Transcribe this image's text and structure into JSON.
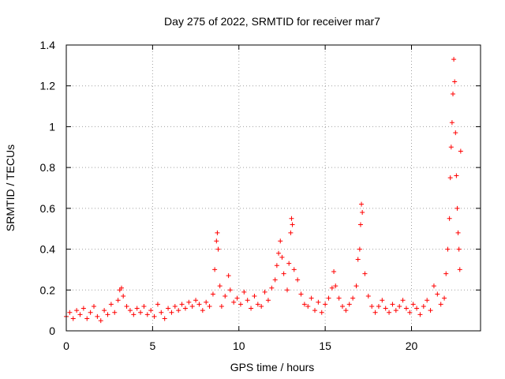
{
  "chart_data": {
    "type": "scatter",
    "title": "Day 275 of 2022, SRMTID for receiver mar7",
    "xlabel": "GPS time / hours",
    "ylabel": "SRMTID / TECUs",
    "xlim": [
      0,
      24
    ],
    "ylim": [
      0,
      1.4
    ],
    "x_ticks": [
      0,
      5,
      10,
      15,
      20
    ],
    "x_tick_labels": [
      "0",
      "5",
      "10",
      "15",
      "20"
    ],
    "y_ticks": [
      0,
      0.2,
      0.4,
      0.6,
      0.8,
      1.0,
      1.2,
      1.4
    ],
    "y_tick_labels": [
      "0",
      "0.2",
      "0.4",
      "0.6",
      "0.8",
      "1",
      "1.2",
      "1.4"
    ],
    "grid": true,
    "marker": "+",
    "color": "#ff0000",
    "series": [
      {
        "name": "SRMTID",
        "points": [
          [
            0.0,
            0.07
          ],
          [
            0.2,
            0.09
          ],
          [
            0.4,
            0.06
          ],
          [
            0.6,
            0.1
          ],
          [
            0.8,
            0.08
          ],
          [
            1.0,
            0.11
          ],
          [
            1.2,
            0.06
          ],
          [
            1.4,
            0.09
          ],
          [
            1.6,
            0.12
          ],
          [
            1.8,
            0.07
          ],
          [
            2.0,
            0.05
          ],
          [
            2.2,
            0.1
          ],
          [
            2.4,
            0.08
          ],
          [
            2.6,
            0.13
          ],
          [
            2.8,
            0.09
          ],
          [
            3.0,
            0.15
          ],
          [
            3.1,
            0.2
          ],
          [
            3.2,
            0.21
          ],
          [
            3.3,
            0.17
          ],
          [
            3.5,
            0.12
          ],
          [
            3.7,
            0.1
          ],
          [
            3.9,
            0.08
          ],
          [
            4.1,
            0.11
          ],
          [
            4.3,
            0.09
          ],
          [
            4.5,
            0.12
          ],
          [
            4.7,
            0.08
          ],
          [
            4.9,
            0.1
          ],
          [
            5.1,
            0.07
          ],
          [
            5.3,
            0.13
          ],
          [
            5.5,
            0.09
          ],
          [
            5.7,
            0.06
          ],
          [
            5.9,
            0.11
          ],
          [
            6.1,
            0.09
          ],
          [
            6.3,
            0.12
          ],
          [
            6.5,
            0.1
          ],
          [
            6.7,
            0.13
          ],
          [
            6.9,
            0.11
          ],
          [
            7.1,
            0.14
          ],
          [
            7.3,
            0.12
          ],
          [
            7.5,
            0.15
          ],
          [
            7.7,
            0.13
          ],
          [
            7.9,
            0.1
          ],
          [
            8.1,
            0.14
          ],
          [
            8.3,
            0.12
          ],
          [
            8.5,
            0.18
          ],
          [
            8.6,
            0.3
          ],
          [
            8.7,
            0.44
          ],
          [
            8.75,
            0.48
          ],
          [
            8.8,
            0.4
          ],
          [
            8.9,
            0.22
          ],
          [
            9.0,
            0.12
          ],
          [
            9.2,
            0.17
          ],
          [
            9.4,
            0.27
          ],
          [
            9.5,
            0.2
          ],
          [
            9.7,
            0.14
          ],
          [
            9.9,
            0.16
          ],
          [
            10.1,
            0.13
          ],
          [
            10.3,
            0.19
          ],
          [
            10.5,
            0.15
          ],
          [
            10.7,
            0.11
          ],
          [
            10.9,
            0.17
          ],
          [
            11.1,
            0.13
          ],
          [
            11.3,
            0.12
          ],
          [
            11.5,
            0.19
          ],
          [
            11.7,
            0.15
          ],
          [
            11.9,
            0.21
          ],
          [
            12.1,
            0.25
          ],
          [
            12.2,
            0.32
          ],
          [
            12.3,
            0.38
          ],
          [
            12.4,
            0.44
          ],
          [
            12.5,
            0.36
          ],
          [
            12.6,
            0.28
          ],
          [
            12.8,
            0.2
          ],
          [
            12.9,
            0.33
          ],
          [
            13.0,
            0.48
          ],
          [
            13.05,
            0.55
          ],
          [
            13.1,
            0.52
          ],
          [
            13.2,
            0.3
          ],
          [
            13.4,
            0.25
          ],
          [
            13.6,
            0.18
          ],
          [
            13.8,
            0.13
          ],
          [
            14.0,
            0.12
          ],
          [
            14.2,
            0.16
          ],
          [
            14.4,
            0.1
          ],
          [
            14.6,
            0.14
          ],
          [
            14.8,
            0.09
          ],
          [
            15.0,
            0.13
          ],
          [
            15.2,
            0.16
          ],
          [
            15.4,
            0.21
          ],
          [
            15.5,
            0.29
          ],
          [
            15.6,
            0.22
          ],
          [
            15.8,
            0.16
          ],
          [
            16.0,
            0.12
          ],
          [
            16.2,
            0.1
          ],
          [
            16.4,
            0.13
          ],
          [
            16.6,
            0.16
          ],
          [
            16.8,
            0.22
          ],
          [
            16.9,
            0.35
          ],
          [
            17.0,
            0.4
          ],
          [
            17.05,
            0.52
          ],
          [
            17.1,
            0.62
          ],
          [
            17.15,
            0.58
          ],
          [
            17.3,
            0.28
          ],
          [
            17.5,
            0.17
          ],
          [
            17.7,
            0.12
          ],
          [
            17.9,
            0.09
          ],
          [
            18.1,
            0.12
          ],
          [
            18.3,
            0.15
          ],
          [
            18.5,
            0.11
          ],
          [
            18.7,
            0.09
          ],
          [
            18.9,
            0.13
          ],
          [
            19.1,
            0.1
          ],
          [
            19.3,
            0.12
          ],
          [
            19.5,
            0.15
          ],
          [
            19.7,
            0.11
          ],
          [
            19.9,
            0.09
          ],
          [
            20.1,
            0.13
          ],
          [
            20.3,
            0.11
          ],
          [
            20.5,
            0.08
          ],
          [
            20.7,
            0.12
          ],
          [
            20.9,
            0.15
          ],
          [
            21.1,
            0.1
          ],
          [
            21.3,
            0.22
          ],
          [
            21.5,
            0.18
          ],
          [
            21.7,
            0.13
          ],
          [
            21.9,
            0.16
          ],
          [
            22.0,
            0.28
          ],
          [
            22.1,
            0.4
          ],
          [
            22.2,
            0.55
          ],
          [
            22.25,
            0.75
          ],
          [
            22.3,
            0.9
          ],
          [
            22.35,
            1.02
          ],
          [
            22.4,
            1.16
          ],
          [
            22.45,
            1.33
          ],
          [
            22.5,
            1.22
          ],
          [
            22.55,
            0.97
          ],
          [
            22.6,
            0.76
          ],
          [
            22.65,
            0.6
          ],
          [
            22.7,
            0.48
          ],
          [
            22.75,
            0.4
          ],
          [
            22.8,
            0.3
          ],
          [
            22.85,
            0.88
          ]
        ]
      }
    ]
  }
}
